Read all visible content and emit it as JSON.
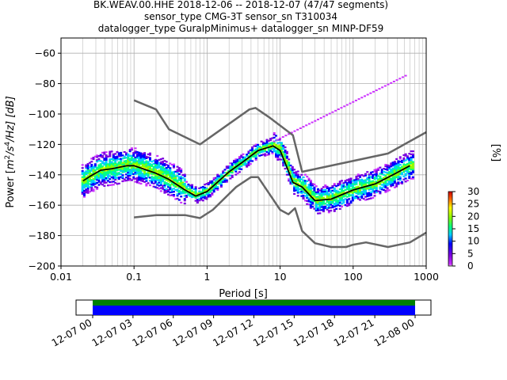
{
  "title_lines": [
    "BK.WEAV.00.HHE   2018-12-06 -- 2018-12-07  (47/47 segments)",
    "sensor_type CMG-3T sensor_sn T310034",
    "datalogger_type GuralpMinimus+ datalogger_sn MINP-DF59"
  ],
  "chart_data": [
    {
      "type": "heatmap",
      "xlabel": "Period [s]",
      "ylabel": "Power [m²/s⁴/Hz] [dB]",
      "ylabel_parts": {
        "pre": "Power [",
        "m": "m",
        "sup2": "2",
        "mid": "/s",
        "sup4": "4",
        "post": "/Hz] [dB]"
      },
      "xscale": "log",
      "xlim": [
        0.01,
        1000
      ],
      "ylim": [
        -200,
        -50
      ],
      "x_ticks": [
        "0.01",
        "0.1",
        "1",
        "10",
        "100",
        "1000"
      ],
      "y_ticks": [
        "−200",
        "−180",
        "−160",
        "−140",
        "−120",
        "−100",
        "−80",
        "−60"
      ],
      "y_tick_values": [
        -200,
        -180,
        -160,
        -140,
        -120,
        -100,
        -80,
        -60
      ],
      "grid": true,
      "series": [
        {
          "color": "#666666",
          "x": [
            0.1,
            0.2,
            0.3,
            0.8,
            3.8,
            4.6,
            7.0,
            15.0,
            20.0,
            300.0,
            1000.0
          ],
          "y": [
            -91,
            -97,
            -110,
            -120,
            -97,
            -96,
            -102,
            -114,
            -138,
            -126,
            -112
          ]
        },
        {
          "color": "#666666",
          "x": [
            0.1,
            0.2,
            0.5,
            0.8,
            1.2,
            2.5,
            4.0,
            5.0,
            10.0,
            13.0,
            16.0,
            20.0,
            30.0,
            50.0,
            80.0,
            100.0,
            150.0,
            300.0,
            600.0,
            1000.0
          ],
          "y": [
            -168,
            -166.5,
            -166.5,
            -168.5,
            -163,
            -148,
            -141.5,
            -141.5,
            -163,
            -166,
            -162,
            -177,
            -185,
            -187.5,
            -187.5,
            -186,
            -184.5,
            -187.5,
            -184.5,
            -178
          ]
        },
        {
          "color": "#000000",
          "x": [
            0.02,
            0.025,
            0.035,
            0.05,
            0.08,
            0.1,
            0.2,
            0.3,
            0.5,
            0.7,
            1.0,
            2.0,
            3.0,
            5.0,
            8.0,
            10.0,
            15.0,
            20.0,
            30.0,
            50.0,
            100.0,
            200.0,
            350.0,
            600.0
          ],
          "y": [
            -144,
            -141,
            -137,
            -136,
            -134,
            -134,
            -139,
            -143,
            -150,
            -154,
            -151,
            -138,
            -132,
            -124,
            -121,
            -124,
            -145,
            -148,
            -157,
            -156,
            -150,
            -146,
            -140,
            -134
          ]
        }
      ],
      "colorbar": {
        "label": "[%]",
        "ticks": [
          "0",
          "5",
          "10",
          "15",
          "20",
          "25",
          "30"
        ],
        "range": [
          0,
          30
        ]
      }
    },
    {
      "type": "timeline",
      "x_ticks": [
        "12-07 00",
        "12-07 03",
        "12-07 06",
        "12-07 09",
        "12-07 12",
        "12-07 15",
        "12-07 18",
        "12-07 21",
        "12-08 00"
      ],
      "bar_colors": [
        "#008000",
        "#0000ff"
      ]
    }
  ]
}
